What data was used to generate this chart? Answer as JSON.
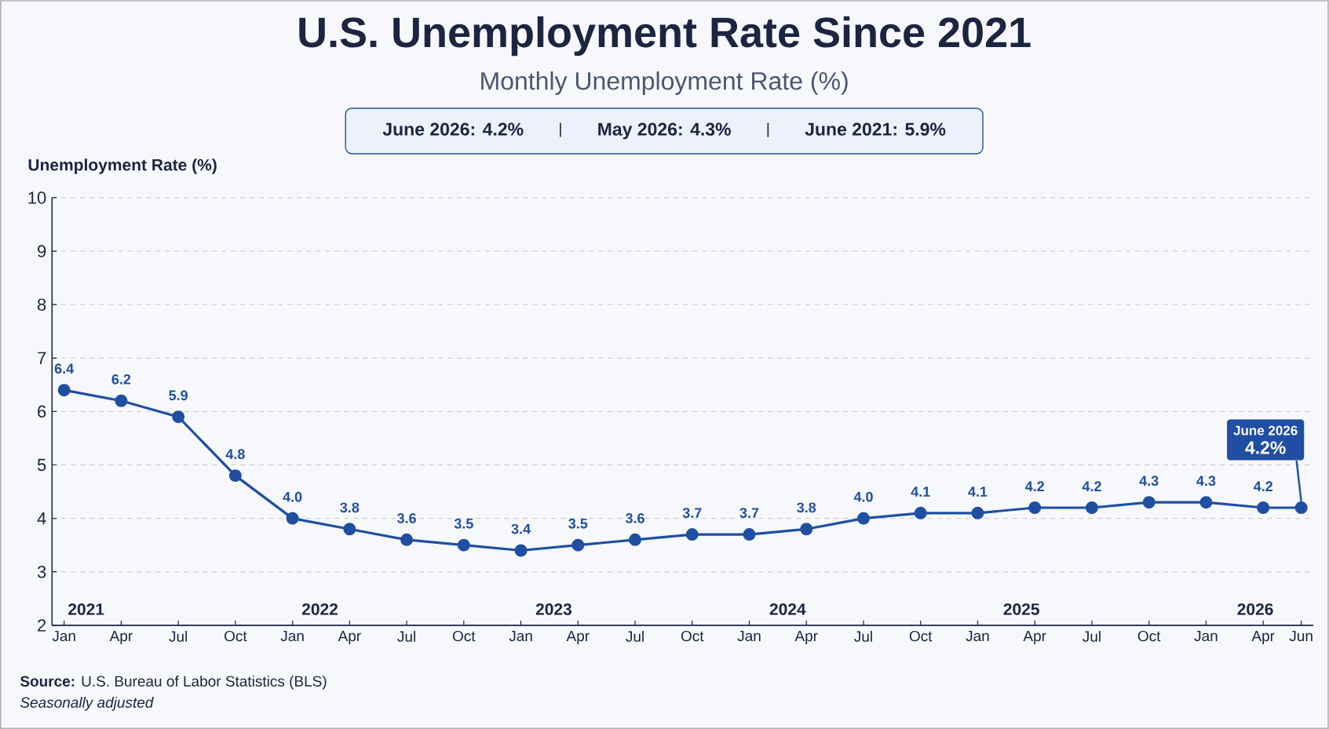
{
  "chart_data": {
    "type": "line",
    "title": "U.S. Unemployment Rate Since 2021",
    "subtitle": "Monthly Unemployment Rate (%)",
    "ylabel": "Unemployment Rate (%)",
    "x": [
      "2021-01",
      "2021-04",
      "2021-07",
      "2021-10",
      "2022-01",
      "2022-04",
      "2022-07",
      "2022-10",
      "2023-01",
      "2023-04",
      "2023-07",
      "2023-10",
      "2024-01",
      "2024-04",
      "2024-07",
      "2024-10",
      "2025-01",
      "2025-04",
      "2025-07",
      "2025-10",
      "2026-01",
      "2026-04",
      "2026-06"
    ],
    "series": [
      {
        "color": "#1f4ea3",
        "values": [
          6.4,
          6.2,
          5.9,
          4.8,
          4.0,
          3.8,
          3.6,
          3.5,
          3.4,
          3.5,
          3.6,
          3.7,
          3.7,
          3.8,
          4.0,
          4.1,
          4.1,
          4.2,
          4.2,
          4.3,
          4.3,
          4.2,
          4.2
        ],
        "value_labels": [
          "6.4",
          "6.2",
          "5.9",
          "4.8",
          "4.0",
          "3.8",
          "3.6",
          "3.5",
          "3.4",
          "3.5",
          "3.6",
          "3.7",
          "3.7",
          "3.8",
          "4.0",
          "4.1",
          "4.1",
          "4.2",
          "4.2",
          "4.3",
          "4.3",
          "4.2",
          null
        ]
      }
    ],
    "xlim": [
      "2020-12-12",
      "2026-06-20"
    ],
    "xticks": [
      {
        "value": "2021-01",
        "label": "Jan"
      },
      {
        "value": "2021-04",
        "label": "Apr"
      },
      {
        "value": "2021-07",
        "label": "Jul"
      },
      {
        "value": "2021-10",
        "label": "Oct"
      },
      {
        "value": "2022-01",
        "label": "Jan"
      },
      {
        "value": "2022-04",
        "label": "Apr"
      },
      {
        "value": "2022-07",
        "label": "Jul"
      },
      {
        "value": "2022-10",
        "label": "Oct"
      },
      {
        "value": "2023-01",
        "label": "Jan"
      },
      {
        "value": "2023-04",
        "label": "Apr"
      },
      {
        "value": "2023-07",
        "label": "Jul"
      },
      {
        "value": "2023-10",
        "label": "Oct"
      },
      {
        "value": "2024-01",
        "label": "Jan"
      },
      {
        "value": "2024-04",
        "label": "Apr"
      },
      {
        "value": "2024-07",
        "label": "Jul"
      },
      {
        "value": "2024-10",
        "label": "Oct"
      },
      {
        "value": "2025-01",
        "label": "Jan"
      },
      {
        "value": "2025-04",
        "label": "Apr"
      },
      {
        "value": "2025-07",
        "label": "Jul"
      },
      {
        "value": "2025-10",
        "label": "Oct"
      },
      {
        "value": "2026-01",
        "label": "Jan"
      },
      {
        "value": "2026-04",
        "label": "Apr"
      },
      {
        "value": "2026-06",
        "label": "Jun"
      }
    ],
    "ylim": [
      2,
      10
    ],
    "yticks": [
      2,
      3,
      4,
      5,
      6,
      7,
      8,
      9,
      10
    ],
    "grid": "y",
    "marker": "circle",
    "line_style": "solid",
    "annotations": [
      "June 2026: 4.2%",
      "May 2026: 4.3%",
      "June 2021: 5.9%",
      "**Source:** U.S. Bureau of Labor Statistics (BLS)",
      "Seasonally adjusted",
      "2021",
      "2022",
      "2023",
      "2024",
      "2025",
      "2026",
      "June 2026",
      {
        "text": "4.2%",
        "x": "2026-06",
        "y": 4.2
      }
    ]
  }
}
